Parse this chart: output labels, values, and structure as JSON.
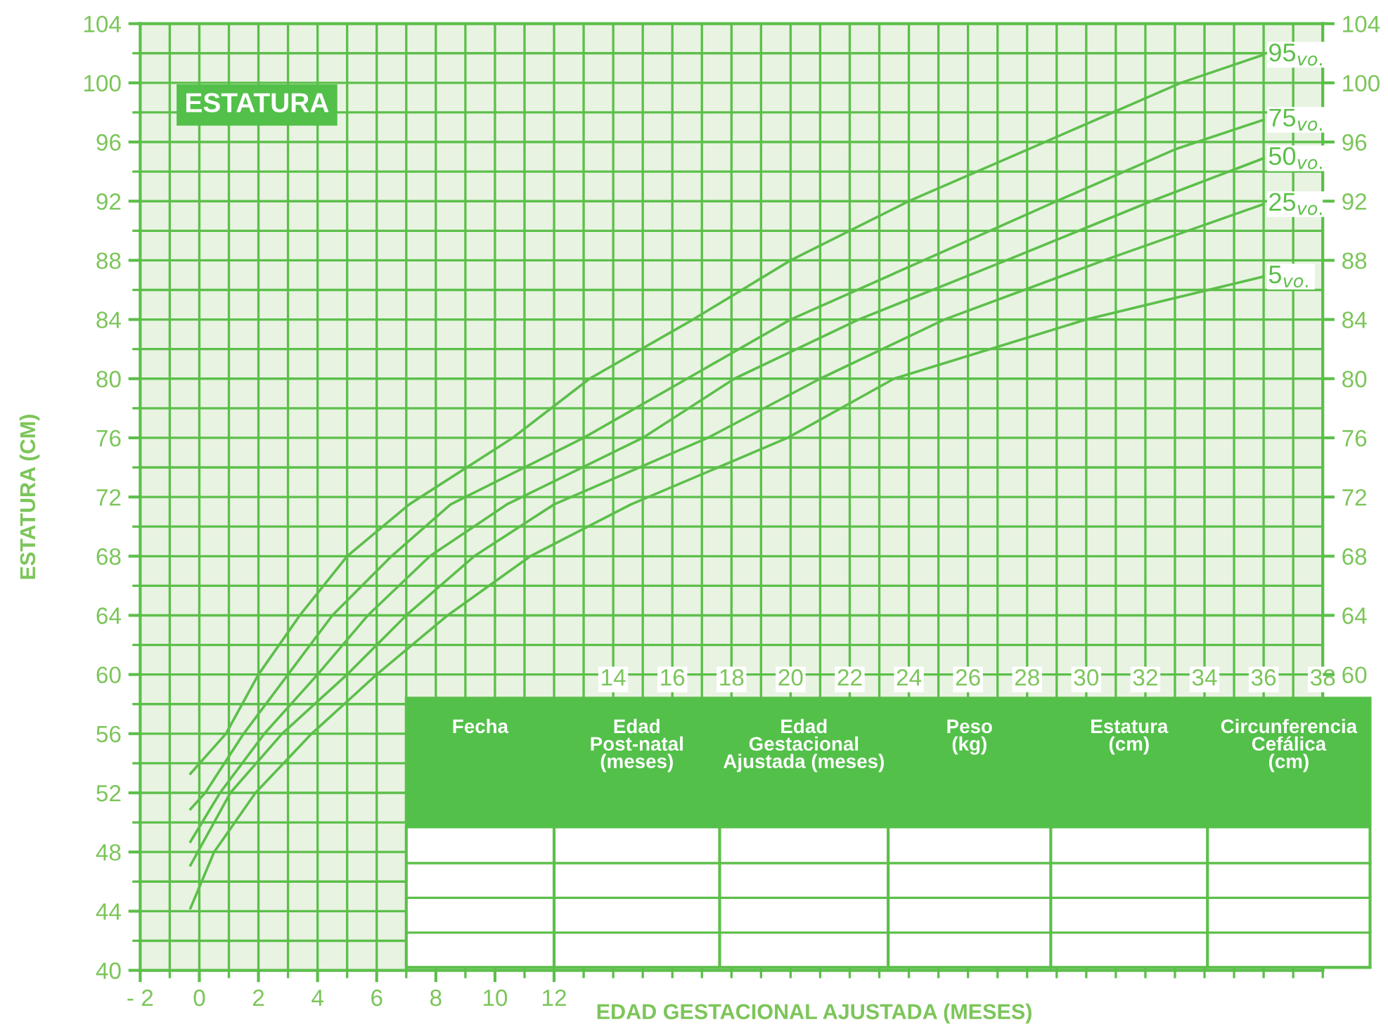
{
  "chart_data": {
    "type": "line",
    "title": "ESTATURA",
    "xlabel": "EDAD GESTACIONAL AJUSTADA (MESES)",
    "ylabel": "ESTATURA (CM)",
    "xlim": [
      -2,
      38
    ],
    "xticks": [
      {
        "value": -2,
        "label": "- 2"
      },
      0,
      2,
      4,
      6,
      8,
      10,
      12
    ],
    "x2lim": [
      -2,
      38
    ],
    "x2ticks": [
      14,
      16,
      18,
      20,
      22,
      24,
      26,
      28,
      30,
      32,
      34,
      36,
      38
    ],
    "ylim": [
      40,
      104
    ],
    "yticks": [
      40,
      44,
      48,
      52,
      56,
      60,
      64,
      68,
      72,
      76,
      80,
      84,
      88,
      92,
      96,
      100,
      104
    ],
    "y2lim": [
      40,
      104
    ],
    "y2ticks": [
      60,
      64,
      68,
      72,
      76,
      80,
      84,
      88,
      92,
      96,
      100,
      104
    ],
    "grid": true,
    "legend": false,
    "marker": "none",
    "line_style": "solid",
    "annotations": [
      "Fecha",
      "Edad\nPost-natal\n(meses)",
      "Edad\nGestacional\nAjustada (meses)",
      "Peso\n(kg)",
      "Estatura\n(cm)",
      "Circunferencia\nCefálica\n(cm)"
    ],
    "series": [
      {
        "name": "95$_{vo.}$",
        "color": "#5cbf4a",
        "x": [
          -0.3,
          0.9,
          2,
          3.4,
          5,
          7.1,
          10.6,
          13.2,
          16.7,
          20,
          24,
          28.6,
          33.2,
          36
        ],
        "values": [
          53.3,
          56,
          60,
          64,
          68,
          71.5,
          76,
          80,
          84,
          88,
          92,
          96,
          100,
          101.9
        ]
      },
      {
        "name": "75$_{vo.}$",
        "color": "#5cbf4a",
        "x": [
          -0.3,
          0.2,
          1.5,
          3,
          4.5,
          6.5,
          8.5,
          13,
          16.5,
          20,
          24.5,
          29,
          33,
          36
        ],
        "values": [
          50.9,
          52,
          56,
          60,
          64,
          68,
          71.5,
          76,
          80,
          84,
          88,
          92,
          95.5,
          97.5
        ]
      },
      {
        "name": "50$_{vo.}$",
        "color": "#5cbf4a",
        "x": [
          -0.3,
          0.7,
          2.2,
          4,
          5.7,
          7.8,
          10.4,
          15,
          18.1,
          22.3,
          27.3,
          32.2,
          36
        ],
        "values": [
          48.7,
          52,
          56,
          60,
          64,
          68,
          71.5,
          76,
          80,
          84,
          88,
          92,
          94.9
        ]
      },
      {
        "name": "25$_{vo.}$",
        "color": "#5cbf4a",
        "x": [
          -0.3,
          1.05,
          2.8,
          5,
          7,
          9.3,
          12,
          17.2,
          21,
          25.2,
          30.6,
          36
        ],
        "values": [
          47.1,
          52,
          56,
          60,
          64,
          68,
          71.5,
          76,
          80,
          84,
          88,
          91.8
        ]
      },
      {
        "name": "5$_{vo.}$",
        "color": "#5cbf4a",
        "x": [
          -0.3,
          0.5,
          1.9,
          3.8,
          6,
          8.4,
          11.2,
          14.6,
          19.9,
          23.5,
          30,
          36
        ],
        "values": [
          44.2,
          48,
          52,
          56,
          60,
          64,
          68,
          71.5,
          76,
          80,
          84,
          86.9
        ]
      }
    ]
  }
}
